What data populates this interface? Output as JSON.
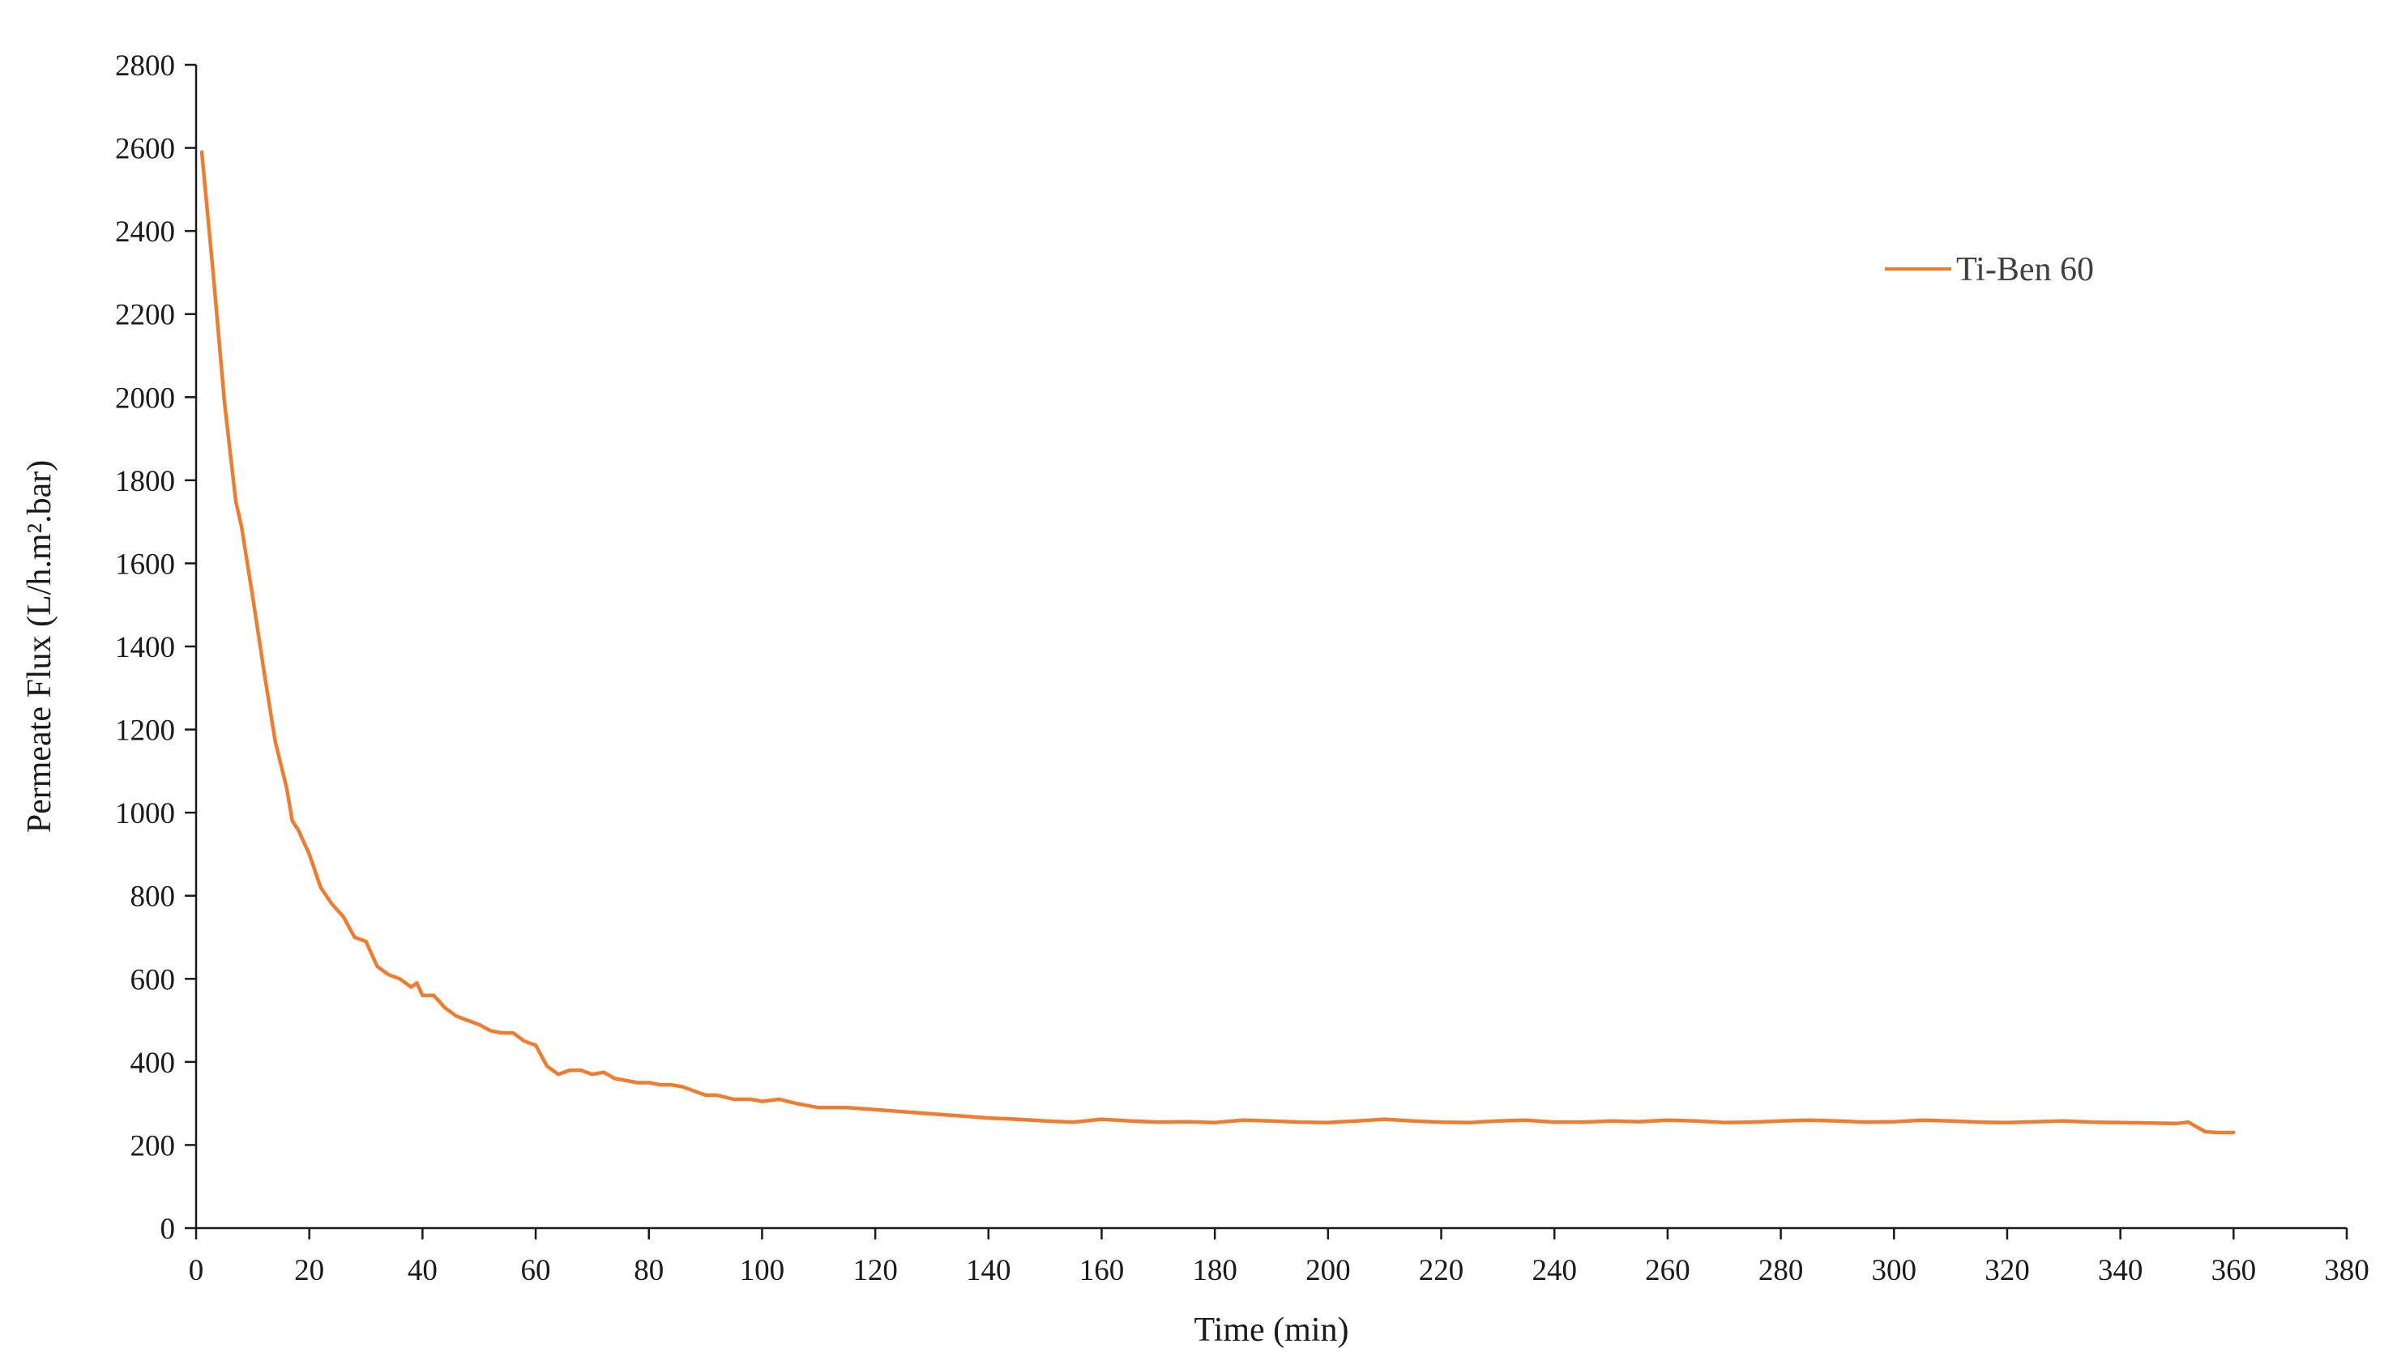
{
  "chart_data": {
    "type": "line",
    "title": "",
    "xlabel": "Time (min)",
    "ylabel": "Permeate Flux (L/h.m².bar)",
    "xlim": [
      0,
      380
    ],
    "ylim": [
      0,
      2800
    ],
    "x_ticks": [
      0,
      20,
      40,
      60,
      80,
      100,
      120,
      140,
      160,
      180,
      200,
      220,
      240,
      260,
      280,
      300,
      320,
      340,
      360,
      380
    ],
    "y_ticks": [
      0,
      200,
      400,
      600,
      800,
      1000,
      1200,
      1400,
      1600,
      1800,
      2000,
      2200,
      2400,
      2600,
      2800
    ],
    "grid": false,
    "legend_position": "top-right",
    "colors": {
      "series": "#ED7D31",
      "axis": "#1a1a1a"
    },
    "series": [
      {
        "name": "Ti-Ben 60",
        "color": "#ED7D31",
        "x": [
          1,
          3,
          5,
          7,
          8,
          10,
          12,
          14,
          16,
          17,
          18,
          20,
          22,
          24,
          26,
          28,
          30,
          32,
          34,
          36,
          38,
          39,
          40,
          42,
          44,
          46,
          48,
          50,
          52,
          54,
          56,
          58,
          60,
          62,
          64,
          66,
          68,
          70,
          72,
          74,
          76,
          78,
          80,
          82,
          84,
          86,
          88,
          90,
          92,
          95,
          98,
          100,
          103,
          106,
          110,
          115,
          120,
          125,
          130,
          135,
          140,
          145,
          150,
          155,
          160,
          165,
          170,
          175,
          180,
          185,
          190,
          195,
          200,
          205,
          210,
          215,
          220,
          225,
          230,
          235,
          240,
          245,
          250,
          255,
          260,
          265,
          270,
          275,
          280,
          285,
          290,
          295,
          300,
          305,
          310,
          315,
          320,
          325,
          330,
          335,
          340,
          345,
          350,
          352,
          355,
          357,
          360
        ],
        "y": [
          2590,
          2300,
          1990,
          1750,
          1690,
          1520,
          1340,
          1170,
          1060,
          980,
          960,
          900,
          820,
          780,
          750,
          700,
          690,
          630,
          610,
          600,
          580,
          590,
          560,
          560,
          530,
          510,
          500,
          490,
          475,
          470,
          470,
          450,
          440,
          390,
          370,
          380,
          380,
          370,
          375,
          360,
          355,
          350,
          350,
          345,
          345,
          340,
          330,
          320,
          320,
          310,
          310,
          305,
          310,
          300,
          290,
          290,
          285,
          280,
          275,
          270,
          265,
          262,
          258,
          255,
          262,
          258,
          255,
          256,
          254,
          260,
          258,
          255,
          254,
          258,
          262,
          258,
          255,
          254,
          258,
          260,
          255,
          255,
          258,
          256,
          260,
          258,
          254,
          255,
          258,
          260,
          258,
          255,
          256,
          260,
          258,
          255,
          254,
          256,
          258,
          255,
          254,
          253,
          252,
          255,
          232,
          230,
          230
        ]
      }
    ]
  }
}
